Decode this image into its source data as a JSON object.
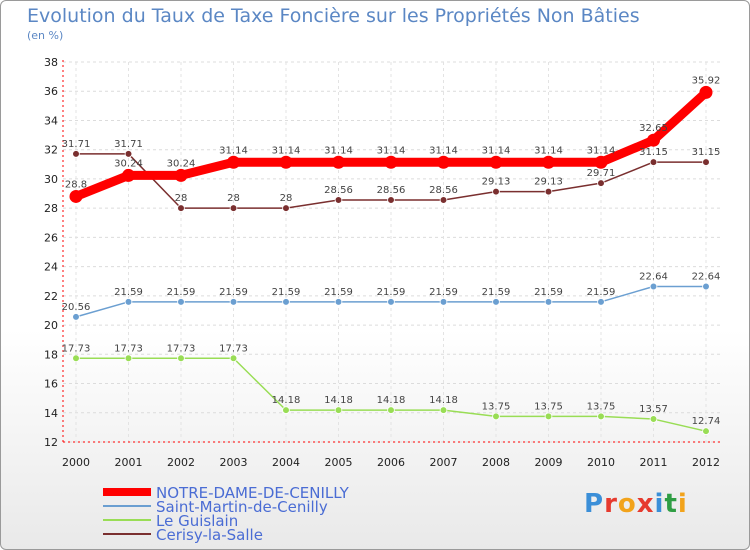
{
  "title": "Evolution du Taux de Taxe Foncière sur les Propriétés Non Bâties",
  "subtitle": "(en %)",
  "logo": {
    "text": "Proxiti",
    "colors": [
      "#3b8fd8",
      "#e63a2e",
      "#f2a31b",
      "#e63a2e",
      "#3b8fd8",
      "#2f9e44",
      "#f2a31b"
    ]
  },
  "chart_data": {
    "type": "line",
    "title": "Evolution du Taux de Taxe Foncière sur les Propriétés Non Bâties",
    "ylabel": "(en %)",
    "xlabel": "",
    "categories": [
      "2000",
      "2001",
      "2002",
      "2003",
      "2004",
      "2005",
      "2006",
      "2007",
      "2008",
      "2009",
      "2010",
      "2011",
      "2012"
    ],
    "ylim": [
      12,
      38
    ],
    "yticks": [
      12,
      14,
      16,
      18,
      20,
      22,
      24,
      26,
      28,
      30,
      32,
      34,
      36,
      38
    ],
    "grid": true,
    "series": [
      {
        "name": "NOTRE-DAME-DE-CENILLY",
        "color": "#ff0000",
        "bold": true,
        "values": [
          28.8,
          30.24,
          30.24,
          31.14,
          31.14,
          31.14,
          31.14,
          31.14,
          31.14,
          31.14,
          31.14,
          32.65,
          35.92
        ],
        "labels": [
          "28.8",
          "30.24",
          "30.24",
          "31.14",
          "31.14",
          "31.14",
          "31.14",
          "31.14",
          "31.14",
          "31.14",
          "31.14",
          "32.65",
          "35.92"
        ]
      },
      {
        "name": "Saint-Martin-de-Cenilly",
        "color": "#6b9fd1",
        "bold": false,
        "values": [
          20.56,
          21.59,
          21.59,
          21.59,
          21.59,
          21.59,
          21.59,
          21.59,
          21.59,
          21.59,
          21.59,
          22.64,
          22.64
        ],
        "labels": [
          "20.56",
          "21.59",
          "21.59",
          "21.59",
          "21.59",
          "21.59",
          "21.59",
          "21.59",
          "21.59",
          "21.59",
          "21.59",
          "22.64",
          "22.64"
        ]
      },
      {
        "name": "Le Guislain",
        "color": "#99dd55",
        "bold": false,
        "values": [
          17.73,
          17.73,
          17.73,
          17.73,
          14.18,
          14.18,
          14.18,
          14.18,
          13.75,
          13.75,
          13.75,
          13.57,
          12.74
        ],
        "labels": [
          "17.73",
          "17.73",
          "17.73",
          "17.73",
          "14.18",
          "14.18",
          "14.18",
          "14.18",
          "13.75",
          "13.75",
          "13.75",
          "13.57",
          "12.74"
        ]
      },
      {
        "name": "Cerisy-la-Salle",
        "color": "#7a2f2f",
        "bold": false,
        "values": [
          31.71,
          31.71,
          28,
          28,
          28,
          28.56,
          28.56,
          28.56,
          29.13,
          29.13,
          29.71,
          31.15,
          31.15
        ],
        "labels": [
          "31.71",
          "31.71",
          "28",
          "28",
          "28",
          "28.56",
          "28.56",
          "28.56",
          "29.13",
          "29.13",
          "29.71",
          "31.15",
          "31.15"
        ]
      }
    ]
  }
}
